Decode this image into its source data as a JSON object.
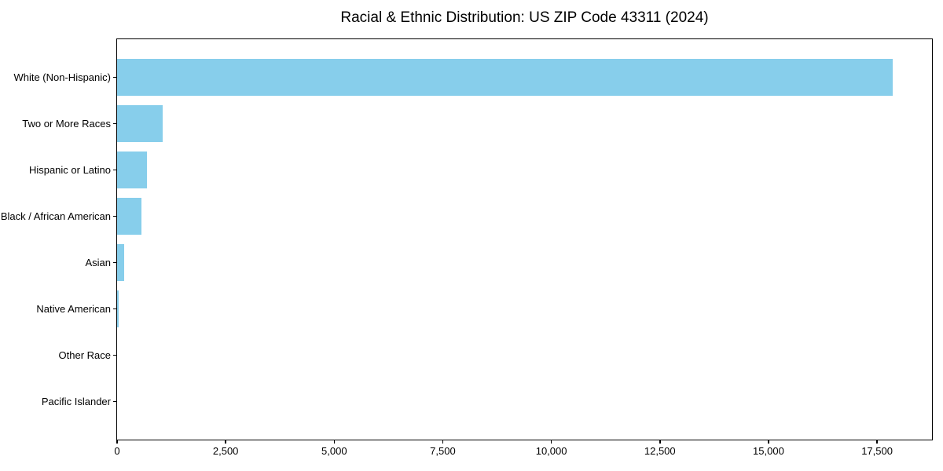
{
  "figure": {
    "background_color": "#ffffff",
    "text_color": "#000000",
    "axis_color": "#000000"
  },
  "chart_data": {
    "type": "bar",
    "orientation": "horizontal",
    "title": "Racial & Ethnic Distribution: US ZIP Code 43311 (2024)",
    "xlabel": "",
    "ylabel": "",
    "categories": [
      "White (Non-Hispanic)",
      "Two or More Races",
      "Hispanic or Latino",
      "Black / African American",
      "Asian",
      "Native American",
      "Other Race",
      "Pacific Islander"
    ],
    "values": [
      17860,
      1050,
      695,
      555,
      165,
      45,
      0,
      0
    ],
    "bar_color": "#87CEEB",
    "xlim": [
      0,
      18765
    ],
    "x_ticks": [
      0,
      2500,
      5000,
      7500,
      10000,
      12500,
      15000,
      17500
    ],
    "x_tick_labels": [
      "0",
      "2,500",
      "5,000",
      "7,500",
      "10,000",
      "12,500",
      "15,000",
      "17,500"
    ],
    "grid": false,
    "legend": "none",
    "largest_category_on_top": true
  }
}
